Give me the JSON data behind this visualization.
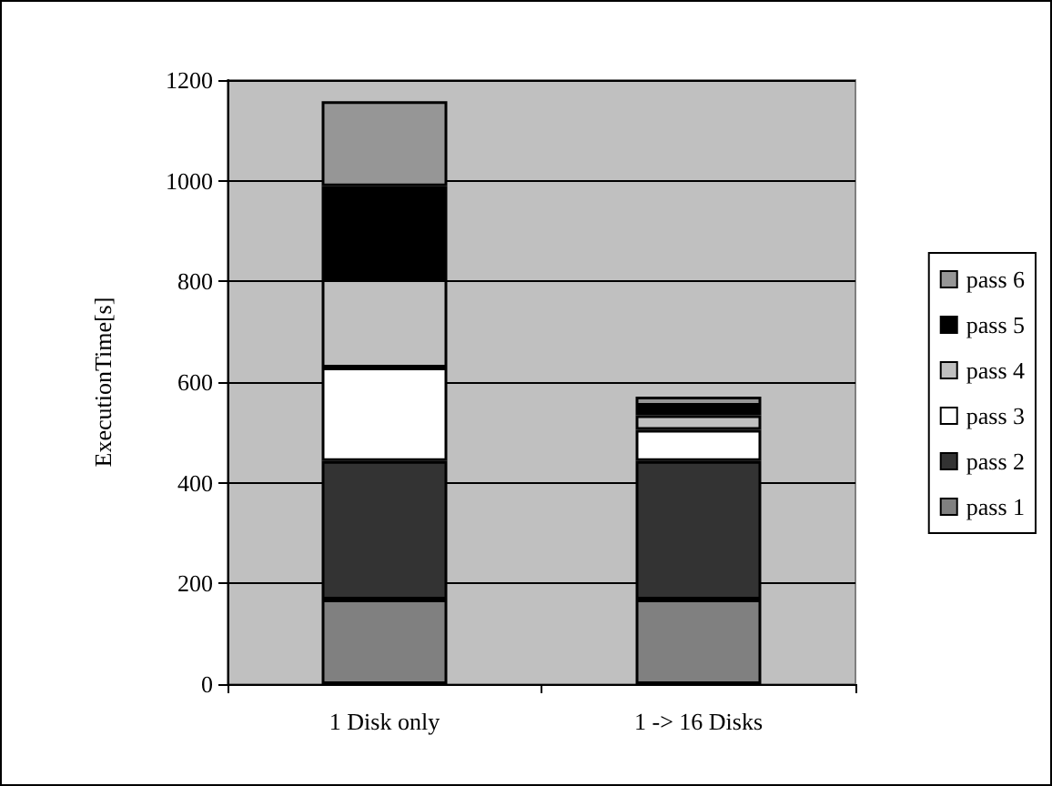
{
  "chart_data": {
    "type": "bar",
    "stacked": true,
    "ylabel": "ExecutionTime[s]",
    "categories": [
      "1 Disk only",
      "1 -> 16 Disks"
    ],
    "series": [
      {
        "name": "pass 1",
        "color": "#808080",
        "values": [
          168,
          168
        ]
      },
      {
        "name": "pass 2",
        "color": "#333333",
        "values": [
          275,
          275
        ]
      },
      {
        "name": "pass 3",
        "color": "#ffffff",
        "values": [
          186,
          62
        ]
      },
      {
        "name": "pass 4",
        "color": "#c0c0c0",
        "values": [
          175,
          29
        ]
      },
      {
        "name": "pass 5",
        "color": "#000000",
        "values": [
          185,
          19
        ]
      },
      {
        "name": "pass 6",
        "color": "#969696",
        "values": [
          169,
          18
        ]
      }
    ],
    "ylim": [
      0,
      1200
    ],
    "yticks": [
      0,
      200,
      400,
      600,
      800,
      1000,
      1200
    ],
    "grid": "y",
    "legend": "right"
  }
}
